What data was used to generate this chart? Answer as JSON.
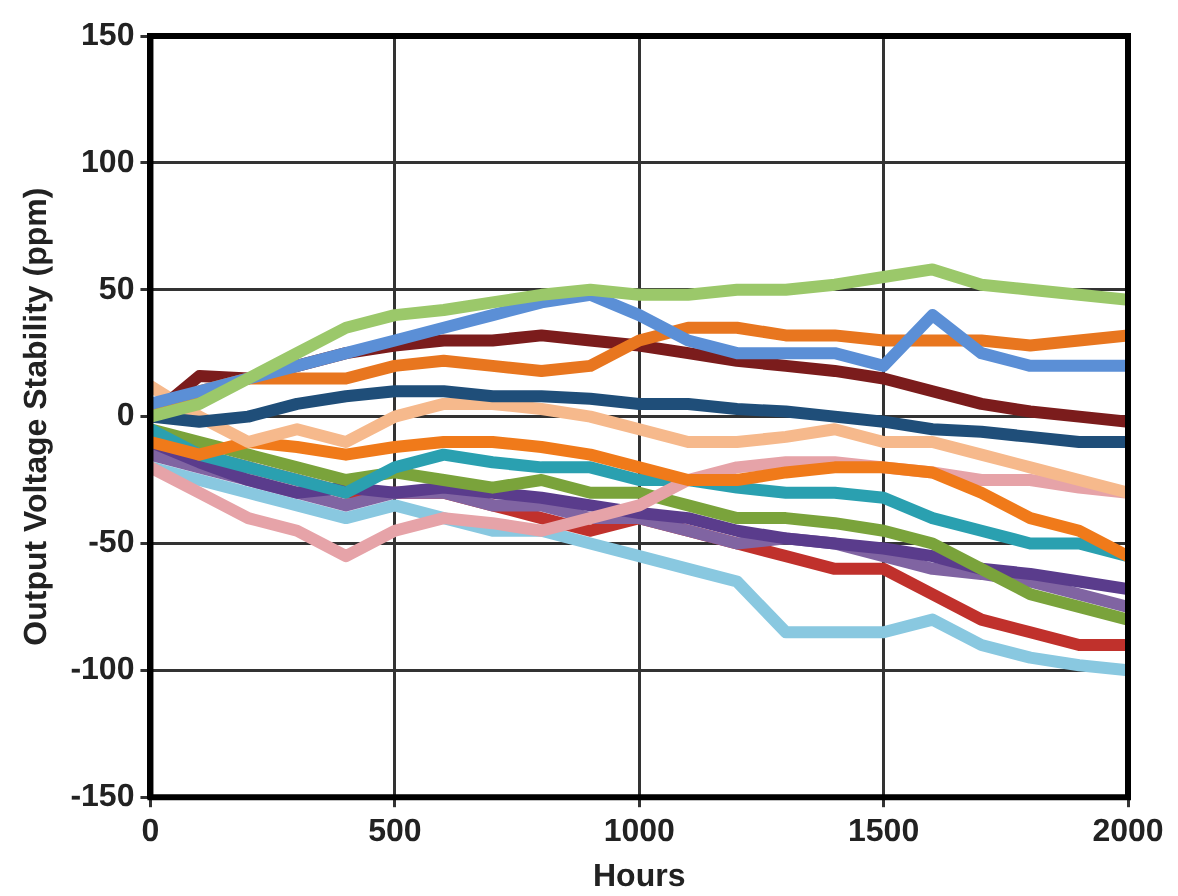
{
  "chart_data": {
    "type": "line",
    "xlabel": "Hours",
    "ylabel": "Output Voltage Stability (ppm)",
    "x": [
      0,
      100,
      200,
      300,
      400,
      500,
      600,
      700,
      800,
      900,
      1000,
      1100,
      1200,
      1300,
      1400,
      1500,
      1600,
      1700,
      1800,
      1900,
      2000
    ],
    "xlim": [
      0,
      2000
    ],
    "xticks": [
      0,
      500,
      1000,
      1500,
      2000
    ],
    "ylim": [
      -150,
      150
    ],
    "yticks": [
      -150,
      -100,
      -50,
      0,
      50,
      100,
      150
    ],
    "grid": true,
    "legend": false,
    "marker": "none",
    "line_style": "solid",
    "series": [
      {
        "color": "#9bc86a",
        "values": [
          0,
          5,
          15,
          25,
          35,
          40,
          42,
          45,
          48,
          50,
          48,
          48,
          50,
          50,
          52,
          55,
          58,
          52,
          50,
          48,
          46
        ]
      },
      {
        "color": "#5b8fd6",
        "values": [
          5,
          10,
          15,
          20,
          25,
          30,
          35,
          40,
          45,
          48,
          40,
          30,
          25,
          25,
          25,
          20,
          40,
          25,
          20,
          20,
          20
        ]
      },
      {
        "color": "#e8761f",
        "values": [
          0,
          10,
          15,
          15,
          15,
          20,
          22,
          20,
          18,
          20,
          30,
          35,
          35,
          32,
          32,
          30,
          30,
          30,
          28,
          30,
          32
        ]
      },
      {
        "color": "#7b1c1c",
        "values": [
          0,
          16,
          15,
          20,
          25,
          28,
          30,
          30,
          32,
          30,
          28,
          25,
          22,
          20,
          18,
          15,
          10,
          5,
          2,
          0,
          -2
        ]
      },
      {
        "color": "#1f4e79",
        "values": [
          0,
          -2,
          0,
          5,
          8,
          10,
          10,
          8,
          8,
          7,
          5,
          5,
          3,
          2,
          0,
          -2,
          -5,
          -6,
          -8,
          -10,
          -10
        ]
      },
      {
        "color": "#f6b98c",
        "values": [
          12,
          0,
          -10,
          -5,
          -10,
          0,
          5,
          5,
          3,
          0,
          -5,
          -10,
          -10,
          -8,
          -5,
          -10,
          -10,
          -15,
          -20,
          -25,
          -30
        ]
      },
      {
        "color": "#f07a1a",
        "values": [
          -10,
          -15,
          -10,
          -12,
          -15,
          -12,
          -10,
          -10,
          -12,
          -15,
          -20,
          -25,
          -25,
          -22,
          -20,
          -20,
          -22,
          -30,
          -40,
          -45,
          -55
        ]
      },
      {
        "color": "#e6a3a8",
        "values": [
          -20,
          -30,
          -40,
          -45,
          -55,
          -45,
          -40,
          -42,
          -45,
          -40,
          -35,
          -25,
          -20,
          -18,
          -18,
          -20,
          -22,
          -25,
          -25,
          -28,
          -30
        ]
      },
      {
        "color": "#2aa0b0",
        "values": [
          -5,
          -15,
          -20,
          -25,
          -30,
          -20,
          -15,
          -18,
          -20,
          -20,
          -25,
          -25,
          -28,
          -30,
          -30,
          -32,
          -40,
          -45,
          -50,
          -50,
          -55
        ]
      },
      {
        "color": "#7aa33b",
        "values": [
          -5,
          -10,
          -15,
          -20,
          -25,
          -22,
          -25,
          -28,
          -25,
          -30,
          -30,
          -35,
          -40,
          -40,
          -42,
          -45,
          -50,
          -60,
          -70,
          -75,
          -80
        ]
      },
      {
        "color": "#5a3c8c",
        "values": [
          -10,
          -18,
          -25,
          -30,
          -28,
          -30,
          -28,
          -30,
          -32,
          -35,
          -38,
          -40,
          -45,
          -48,
          -50,
          -52,
          -55,
          -60,
          -62,
          -65,
          -68
        ]
      },
      {
        "color": "#8064a2",
        "values": [
          -15,
          -20,
          -25,
          -30,
          -35,
          -30,
          -30,
          -35,
          -35,
          -40,
          -40,
          -45,
          -50,
          -48,
          -50,
          -55,
          -60,
          -62,
          -65,
          -70,
          -75
        ]
      },
      {
        "color": "#c0312c",
        "values": [
          -10,
          -15,
          -20,
          -25,
          -30,
          -30,
          -30,
          -35,
          -40,
          -45,
          -40,
          -45,
          -50,
          -55,
          -60,
          -60,
          -70,
          -80,
          -85,
          -90,
          -90
        ]
      },
      {
        "color": "#89c8e0",
        "values": [
          -20,
          -25,
          -30,
          -35,
          -40,
          -35,
          -40,
          -45,
          -45,
          -50,
          -55,
          -60,
          -65,
          -85,
          -85,
          -85,
          -80,
          -90,
          -95,
          -98,
          -100
        ]
      }
    ]
  }
}
